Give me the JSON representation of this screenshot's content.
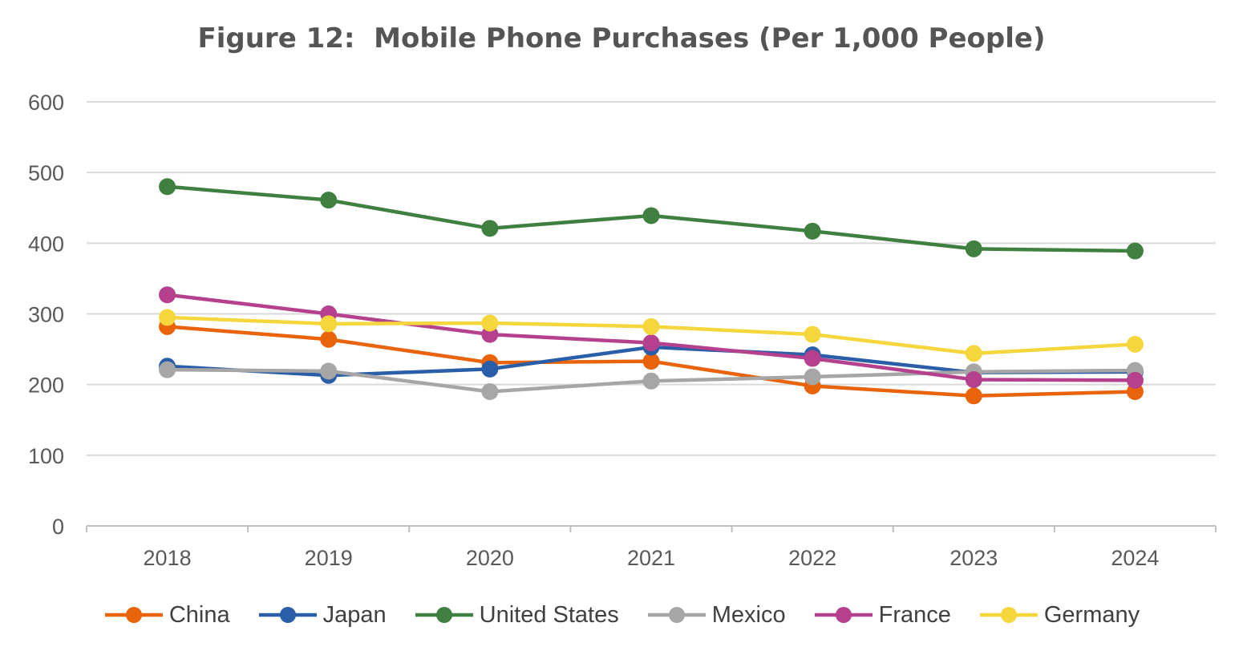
{
  "chart_data": {
    "type": "line",
    "title": "Figure 12:  Mobile Phone Purchases (Per 1,000 People)",
    "xlabel": "",
    "ylabel": "",
    "ylim": [
      0,
      600
    ],
    "yticks": [
      "0",
      "100",
      "200",
      "300",
      "400",
      "500",
      "600"
    ],
    "grid": true,
    "legend_position": "bottom",
    "categories": [
      "2018",
      "2019",
      "2020",
      "2021",
      "2022",
      "2023",
      "2024"
    ],
    "series": [
      {
        "name": "China",
        "color": "#E8630A",
        "values": [
          282,
          264,
          231,
          233,
          198,
          184,
          190
        ]
      },
      {
        "name": "Japan",
        "color": "#2A5EA8",
        "values": [
          226,
          213,
          222,
          253,
          242,
          217,
          218
        ]
      },
      {
        "name": "United States",
        "color": "#3F8040",
        "values": [
          480,
          461,
          421,
          439,
          417,
          392,
          389
        ]
      },
      {
        "name": "Mexico",
        "color": "#A6A6A6",
        "values": [
          221,
          219,
          190,
          205,
          211,
          218,
          220
        ]
      },
      {
        "name": "France",
        "color": "#B5408E",
        "values": [
          327,
          300,
          271,
          259,
          237,
          207,
          206
        ]
      },
      {
        "name": "Germany",
        "color": "#F5D63D",
        "values": [
          295,
          286,
          287,
          282,
          271,
          244,
          257
        ]
      }
    ]
  }
}
